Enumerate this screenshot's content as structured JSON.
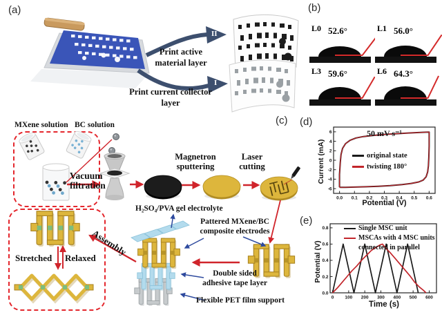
{
  "panels": {
    "a": {
      "tag": "(a)",
      "arrow_top_label": "II",
      "arrow_bottom_label": "I",
      "step_top": "Print active material layer",
      "step_bottom": "Print current collector layer"
    },
    "b": {
      "tag": "(b)",
      "samples": [
        {
          "label": "L0",
          "angle": 52.6,
          "angle_text": "52.6°"
        },
        {
          "label": "L1",
          "angle": 56.0,
          "angle_text": "56.0°"
        },
        {
          "label": "L3",
          "angle": 59.6,
          "angle_text": "59.6°"
        },
        {
          "label": "L6",
          "angle": 64.3,
          "angle_text": "64.3°"
        }
      ]
    },
    "c": {
      "tag": "(c)",
      "labels": {
        "mxene": "MXene solution",
        "bc": "BC solution",
        "vacuum": "Vacuum filtration",
        "magnetron": "Magnetron sputtering",
        "laser": "Laser cutting",
        "electrolyte": "H₂SO₄/PVA gel electrolyte",
        "electrodes": "Pattered MXene/BC composite electrodes",
        "tape": "Double sided adhesive tape layer",
        "pet": "Flexible PET film support",
        "assembly": "Assembly",
        "stretched": "Stretched",
        "relaxed": "Relaxed"
      }
    },
    "d": {
      "tag": "(d)"
    },
    "e": {
      "tag": "(e)"
    }
  },
  "colors": {
    "red_arrow": "#d0242b",
    "blue_arrow": "#2e4a9e",
    "gold": "#ddb63c",
    "gold_dark": "#a8821f",
    "screen_blue": "#3a55b8",
    "light_blue": "#b3dbed",
    "light_blue_dark": "#8cc3da",
    "pet_gray": "#c7cbcd",
    "pet_gray_dark": "#9aa0a3",
    "green_pad": "#7cbd7f",
    "panel_a_arrow": "#3d4f6e"
  },
  "chart_data": [
    {
      "id": "cv-curve",
      "type": "line",
      "annotation": "50 mV s⁻¹",
      "xlabel": "Potential (V)",
      "ylabel": "Current (mA)",
      "xlim": [
        -0.04,
        0.64
      ],
      "ylim": [
        -7,
        7
      ],
      "xticks": [
        0,
        0.1,
        0.2,
        0.3,
        0.4,
        0.5,
        0.6
      ],
      "xtick_labels": [
        "0.0",
        "0.1",
        "0.2",
        "0.3",
        "0.4",
        "0.5",
        "0.6"
      ],
      "yticks": [
        -6,
        -4,
        -2,
        0,
        2,
        4,
        6
      ],
      "ytick_labels": [
        "-6",
        "-4",
        "-2",
        "0",
        "2",
        "4",
        "6"
      ],
      "legend_position": "middle-left",
      "grid": false,
      "series": [
        {
          "name": "original state",
          "color": "#1a1a1a",
          "x": [
            0.0,
            0.0,
            0.005,
            0.01,
            0.02,
            0.04,
            0.07,
            0.11,
            0.16,
            0.22,
            0.3,
            0.38,
            0.46,
            0.53,
            0.58,
            0.6,
            0.6,
            0.598,
            0.595,
            0.59,
            0.58,
            0.56,
            0.53,
            0.48,
            0.42,
            0.34,
            0.26,
            0.18,
            0.1,
            0.04,
            0.01,
            0.0
          ],
          "y": [
            -5.7,
            -3.0,
            -0.5,
            1.2,
            2.5,
            3.5,
            4.2,
            4.7,
            5.0,
            5.2,
            5.45,
            5.6,
            5.75,
            5.85,
            5.92,
            5.95,
            3.0,
            0.5,
            -1.2,
            -2.5,
            -3.5,
            -4.2,
            -4.6,
            -4.9,
            -5.15,
            -5.35,
            -5.5,
            -5.6,
            -5.68,
            -5.72,
            -5.73,
            -5.7
          ]
        },
        {
          "name": "twisting 180°",
          "color": "#c2252b",
          "x": [
            0.0,
            0.0,
            0.005,
            0.01,
            0.02,
            0.04,
            0.07,
            0.11,
            0.16,
            0.22,
            0.3,
            0.38,
            0.46,
            0.53,
            0.58,
            0.6,
            0.6,
            0.598,
            0.595,
            0.59,
            0.58,
            0.56,
            0.53,
            0.48,
            0.42,
            0.34,
            0.26,
            0.18,
            0.1,
            0.04,
            0.01,
            0.0
          ],
          "y": [
            -5.7,
            -3.0,
            -0.5,
            1.2,
            2.5,
            3.5,
            4.2,
            4.7,
            5.0,
            5.2,
            5.45,
            5.6,
            5.75,
            5.85,
            5.92,
            5.95,
            3.0,
            0.5,
            -1.2,
            -2.5,
            -3.5,
            -4.2,
            -4.6,
            -4.9,
            -5.15,
            -5.35,
            -5.5,
            -5.6,
            -5.68,
            -5.72,
            -5.73,
            -5.7
          ]
        }
      ]
    },
    {
      "id": "gcd-curve",
      "type": "line",
      "xlabel": "Time (s)",
      "ylabel": "Potential (V)",
      "xlim": [
        -15,
        645
      ],
      "ylim": [
        0,
        0.85
      ],
      "xticks": [
        0,
        100,
        200,
        300,
        400,
        500,
        600
      ],
      "xtick_labels": [
        "0",
        "100",
        "200",
        "300",
        "400",
        "500",
        "600"
      ],
      "yticks": [
        0,
        0.2,
        0.4,
        0.6,
        0.8
      ],
      "ytick_labels": [
        "0.0",
        "0.2",
        "0.4",
        "0.6",
        "0.8"
      ],
      "legend_position": "top",
      "grid": false,
      "series": [
        {
          "name": "Single MSC unit",
          "color": "#1a1a1a",
          "x": [
            0,
            66,
            133,
            200,
            266,
            333,
            400,
            466,
            532
          ],
          "y": [
            0,
            0.6,
            0,
            0.6,
            0,
            0.6,
            0,
            0.6,
            0
          ]
        },
        {
          "name": "MSCAs with 4 MSC units connected in parallel",
          "legend_lines": [
            "MSCAs with 4 MSC units",
            "connected in parallel"
          ],
          "color": "#c2252b",
          "x": [
            0,
            30,
            60,
            90,
            120,
            150,
            180,
            210,
            240,
            270,
            295,
            310,
            330,
            360,
            390,
            420,
            450,
            480,
            510,
            540,
            565,
            580
          ],
          "y": [
            0,
            0.06,
            0.13,
            0.2,
            0.27,
            0.33,
            0.4,
            0.46,
            0.52,
            0.56,
            0.59,
            0.6,
            0.55,
            0.49,
            0.42,
            0.35,
            0.28,
            0.21,
            0.13,
            0.07,
            0.03,
            0
          ]
        }
      ]
    }
  ]
}
